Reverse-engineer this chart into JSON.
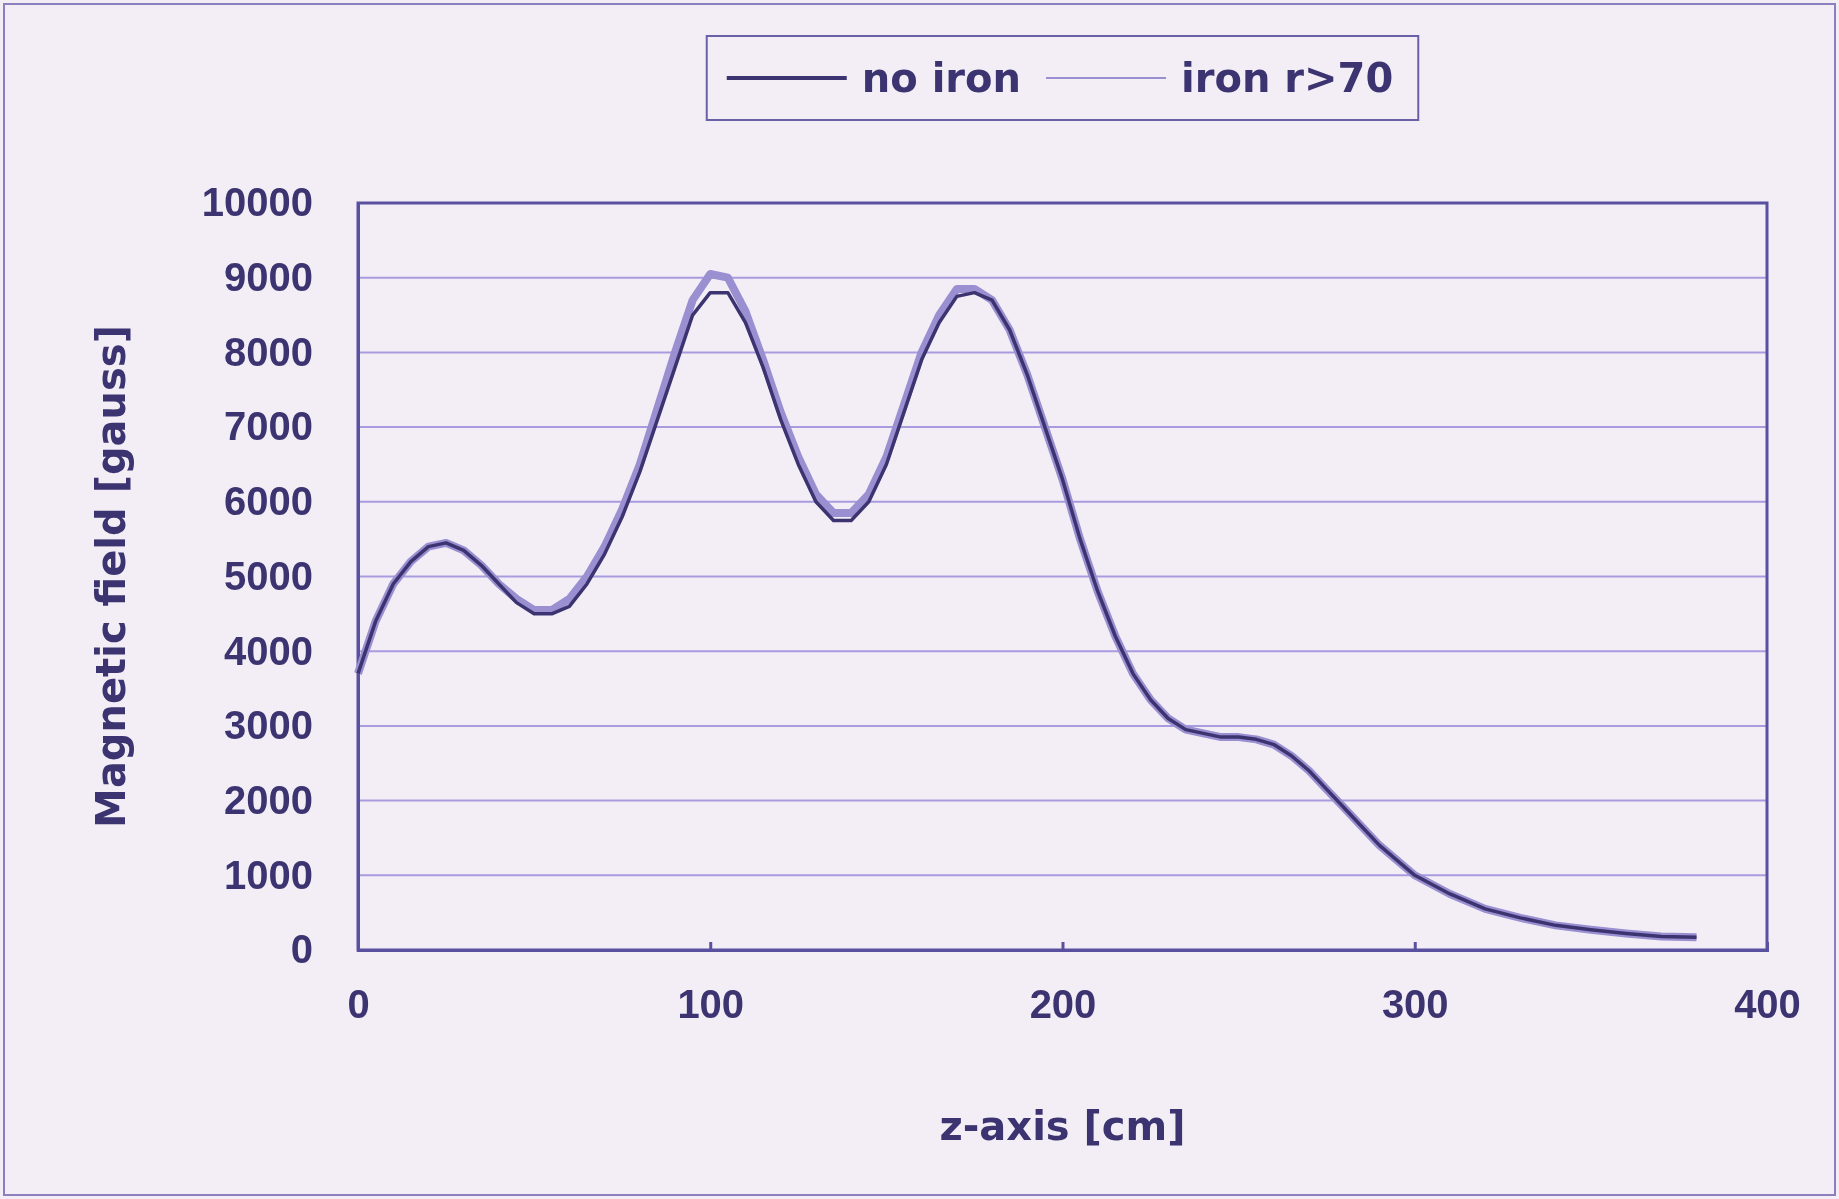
{
  "chart_data": {
    "type": "line",
    "xlabel": "z-axis [cm]",
    "ylabel": "Magnetic field [gauss]",
    "xlim": [
      0,
      400
    ],
    "xticks": [
      0,
      100,
      200,
      300,
      400
    ],
    "ylim": [
      0,
      10000
    ],
    "yticks": [
      0,
      1000,
      2000,
      3000,
      4000,
      5000,
      6000,
      7000,
      8000,
      9000,
      10000
    ],
    "grid": "y",
    "legend": "top",
    "line_style": "solid",
    "marker": "none",
    "x": [
      0,
      5,
      10,
      15,
      20,
      25,
      30,
      35,
      40,
      45,
      50,
      55,
      60,
      65,
      70,
      75,
      80,
      85,
      90,
      95,
      100,
      105,
      110,
      115,
      120,
      125,
      130,
      135,
      140,
      145,
      150,
      155,
      160,
      165,
      170,
      175,
      180,
      185,
      190,
      195,
      200,
      205,
      210,
      215,
      220,
      225,
      230,
      235,
      240,
      245,
      250,
      255,
      260,
      265,
      270,
      275,
      280,
      285,
      290,
      295,
      300,
      310,
      320,
      330,
      340,
      350,
      360,
      370,
      380
    ],
    "series": [
      {
        "name": "no iron",
        "color": "#3c3470",
        "values": [
          3700,
          4400,
          4900,
          5200,
          5400,
          5450,
          5350,
          5150,
          4900,
          4650,
          4500,
          4500,
          4600,
          4900,
          5300,
          5800,
          6400,
          7100,
          7800,
          8500,
          8800,
          8800,
          8400,
          7800,
          7100,
          6500,
          6000,
          5750,
          5750,
          6000,
          6500,
          7200,
          7900,
          8400,
          8750,
          8800,
          8700,
          8300,
          7700,
          7000,
          6300,
          5500,
          4800,
          4200,
          3700,
          3350,
          3100,
          2950,
          2900,
          2850,
          2850,
          2820,
          2750,
          2600,
          2400,
          2150,
          1900,
          1650,
          1400,
          1200,
          1000,
          750,
          550,
          430,
          330,
          270,
          220,
          180,
          170
        ]
      },
      {
        "name": "iron r>70",
        "color": "#9a8fd0",
        "values": [
          3700,
          4400,
          4900,
          5200,
          5400,
          5450,
          5350,
          5150,
          4900,
          4700,
          4550,
          4550,
          4700,
          5000,
          5400,
          5900,
          6500,
          7250,
          8000,
          8700,
          9050,
          9000,
          8550,
          7900,
          7200,
          6600,
          6100,
          5850,
          5850,
          6100,
          6600,
          7300,
          8000,
          8500,
          8850,
          8850,
          8700,
          8300,
          7700,
          7000,
          6300,
          5500,
          4800,
          4200,
          3700,
          3350,
          3100,
          2950,
          2900,
          2850,
          2850,
          2820,
          2750,
          2600,
          2400,
          2150,
          1900,
          1650,
          1400,
          1200,
          1000,
          750,
          550,
          430,
          330,
          270,
          220,
          180,
          170
        ]
      }
    ]
  }
}
